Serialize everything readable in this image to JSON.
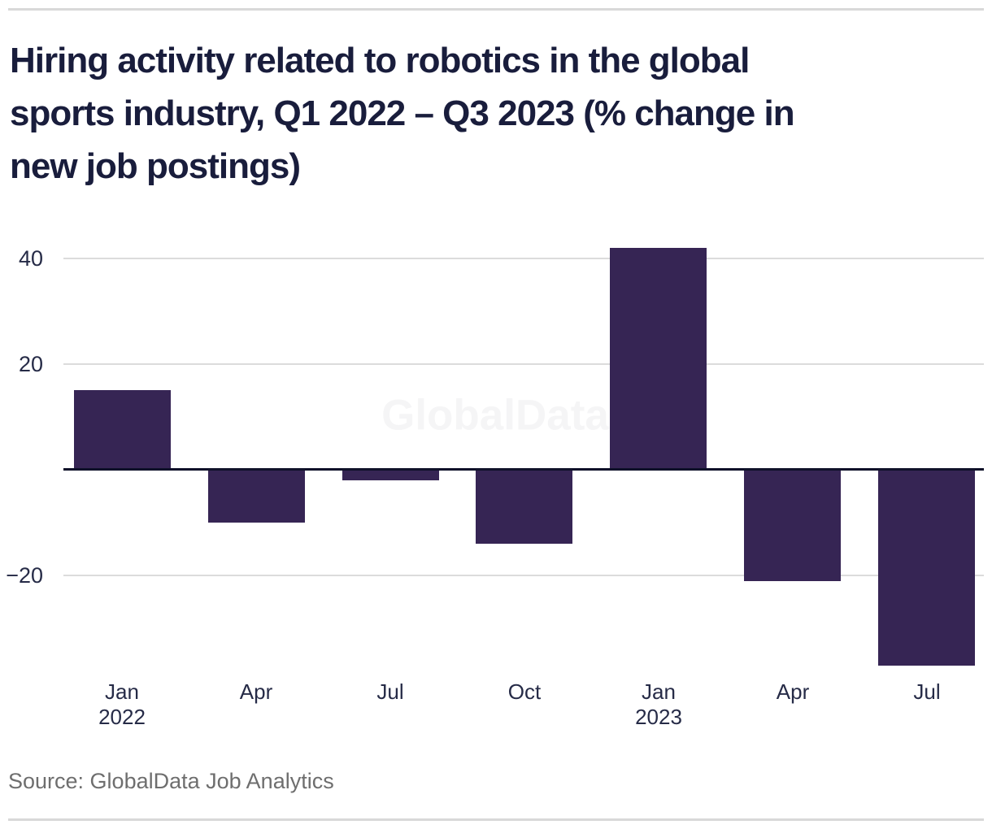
{
  "page": {
    "title_full": "Hiring activity related to robotics in the global sports industry, Q1 2022 – Q3 2023 (% change in new job postings)",
    "title_lines": [
      "Hiring activity related to robotics in the global",
      "sports industry, Q1 2022 – Q3 2023 (% change in",
      "new job postings)"
    ],
    "watermark": "GlobalData",
    "source_note": "Source: GlobalData Job Analytics"
  },
  "colors": {
    "bar": "#362554",
    "zero_axis": "#0f1129",
    "gridline": "#dcdcdc",
    "rule": "#d9d9d9",
    "title_text": "#191d3c",
    "axis_text": "#262b47",
    "source_text": "#6e6e6e",
    "watermark": "#f5f5f6"
  },
  "chart_data": {
    "type": "bar",
    "title": "Hiring activity related to robotics in the global sports industry, Q1 2022 – Q3 2023 (% change in new job postings)",
    "categories": [
      "Jan 2022",
      "Apr 2022",
      "Jul 2022",
      "Oct 2022",
      "Jan 2023",
      "Apr 2023",
      "Jul 2023"
    ],
    "x_tick_labels": [
      [
        "Jan",
        "2022"
      ],
      [
        "Apr"
      ],
      [
        "Jul"
      ],
      [
        "Oct"
      ],
      [
        "Jan",
        "2023"
      ],
      [
        "Apr"
      ],
      [
        "Jul"
      ]
    ],
    "values": [
      15,
      -10,
      -2,
      -14,
      42,
      -21,
      -37
    ],
    "unit": "%",
    "xlabel": "",
    "ylabel": "% change in new job postings",
    "y_ticks": [
      40,
      20,
      -20
    ],
    "y_tick_labels": [
      "40",
      "20",
      "−20"
    ],
    "zero_axis_shown": true,
    "ylim": [
      -40,
      45
    ],
    "grid": true,
    "legend": false,
    "source": "Source: GlobalData Job Analytics",
    "watermark": "GlobalData"
  }
}
